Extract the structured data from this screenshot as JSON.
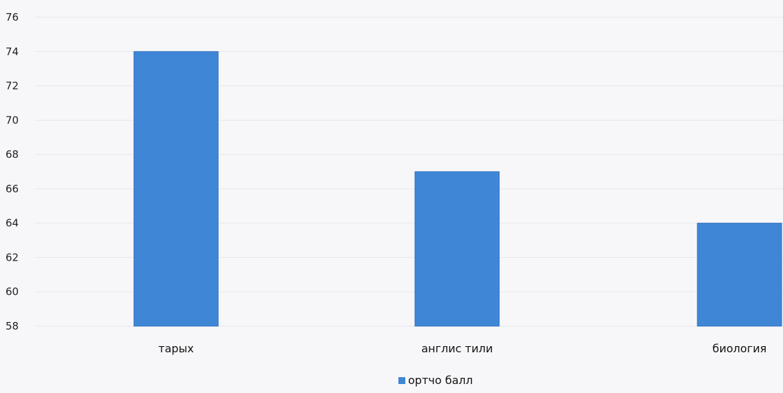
{
  "chart_data": {
    "type": "bar",
    "categories": [
      "тарых",
      "англис тили",
      "биология"
    ],
    "series": [
      {
        "name": "ортчо балл",
        "values": [
          74,
          67,
          64
        ]
      }
    ],
    "ylim": [
      58,
      76
    ],
    "yticks": [
      76,
      74,
      72,
      70,
      68,
      66,
      64,
      62,
      60,
      58
    ],
    "grid": true,
    "legend_position": "bottom",
    "colors": {
      "bar": "#3f86d6",
      "bar_edge": "#2f6fbf"
    }
  }
}
